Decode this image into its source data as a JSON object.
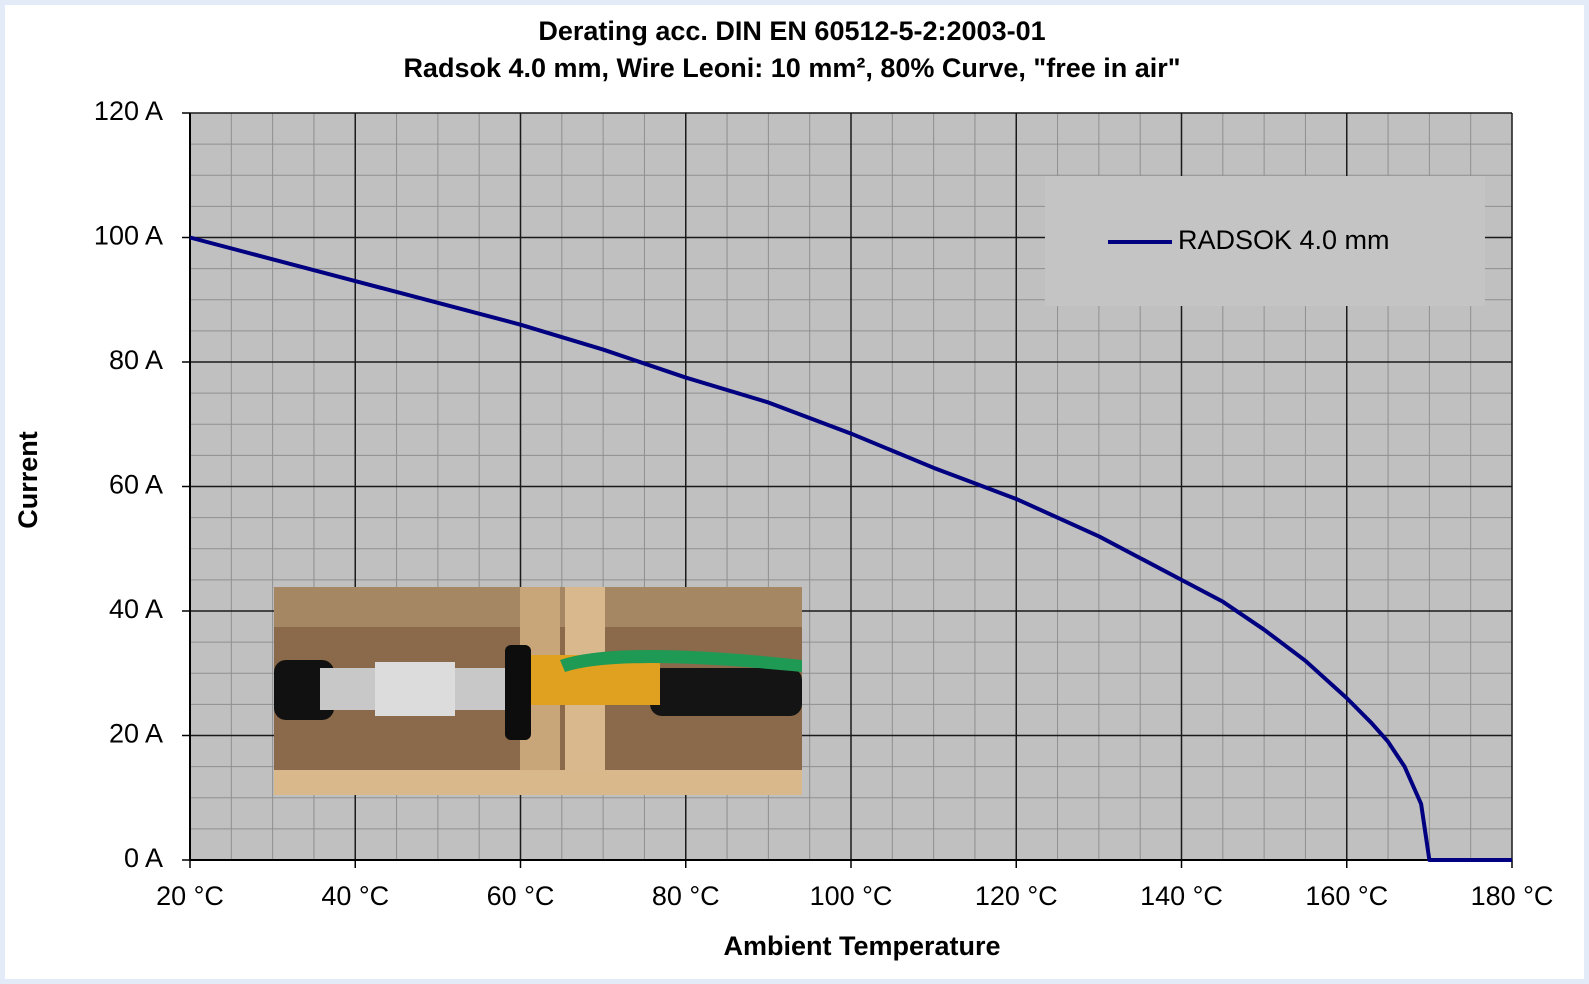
{
  "chart_data": {
    "type": "line",
    "title": "Derating acc. DIN  EN 60512-5-2:2003-01",
    "subtitle": "Radsok 4.0 mm, Wire Leoni: 10 mm², 80% Curve, \"free in air\"",
    "x_label": "Ambient Temperature",
    "y_label": "Current",
    "x": [
      20,
      30,
      40,
      50,
      60,
      70,
      80,
      90,
      100,
      110,
      115,
      120,
      130,
      140,
      145,
      150,
      155,
      160,
      163,
      165,
      167,
      169,
      170,
      180
    ],
    "series": [
      {
        "name": "RADSOK 4.0 mm",
        "color": "#000080",
        "values": [
          100,
          96.5,
          93,
          89.5,
          86,
          82,
          77.5,
          73.5,
          68.5,
          63,
          60.5,
          58,
          52,
          45,
          41.5,
          37,
          32,
          26,
          22,
          19,
          15,
          9,
          0,
          0
        ]
      }
    ],
    "xlim": [
      20,
      180
    ],
    "ylim": [
      0,
      120
    ],
    "xticks": [
      {
        "value": 20,
        "label": "20 °C"
      },
      {
        "value": 40,
        "label": "40 °C"
      },
      {
        "value": 60,
        "label": "60 °C"
      },
      {
        "value": 80,
        "label": "80 °C"
      },
      {
        "value": 100,
        "label": "100 °C"
      },
      {
        "value": 120,
        "label": "120 °C"
      },
      {
        "value": 140,
        "label": "140 °C"
      },
      {
        "value": 160,
        "label": "160 °C"
      },
      {
        "value": 180,
        "label": "180 °C"
      }
    ],
    "yticks": [
      {
        "value": 0,
        "label": "0 A"
      },
      {
        "value": 20,
        "label": "20 A"
      },
      {
        "value": 40,
        "label": "40 A"
      },
      {
        "value": 60,
        "label": "60 A"
      },
      {
        "value": 80,
        "label": "80 A"
      },
      {
        "value": 100,
        "label": "100 A"
      },
      {
        "value": 120,
        "label": "120 A"
      }
    ],
    "grid": true,
    "legend": "upper right"
  }
}
